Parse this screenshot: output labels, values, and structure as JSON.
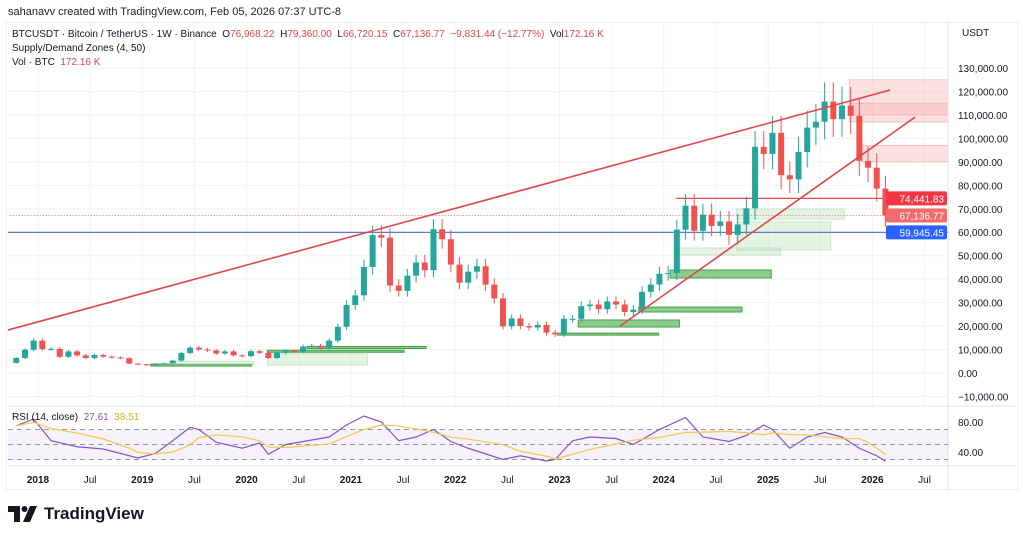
{
  "credit": "sahanavv created with TradingView.com, Feb 05, 2026 07:37 UTC-8",
  "legend": {
    "symbol": "BTCUSDT · Bitcoin / TetherUS · 1W · Binance",
    "o_label": "O",
    "o": "76,968.22",
    "h_label": "H",
    "h": "79,360.00",
    "l_label": "L",
    "l": "66,720.15",
    "c_label": "C",
    "c": "67,136.77",
    "change": "−9,831.44 (−12.77%)",
    "vol_label": "Vol",
    "vol": "172.16 K",
    "indicator": "Supply/Demand Zones (4, 50)",
    "vol_title": "Vol · BTC",
    "vol_value": "172.16 K",
    "rsi_title": "RSI (14, close)",
    "rsi_value": "27.61",
    "rsi_ma_value": "38.51"
  },
  "axis_currency": "USDT",
  "logo_text": "TradingView",
  "colors": {
    "up": "#26a69a",
    "down": "#ef5350",
    "trend": "#e0474c",
    "support": "#5b7fc7",
    "supply": "#f7a8ab",
    "demand": "#4caf50",
    "rsi": "#7e57c2",
    "rsi_ma": "#f0c94a",
    "price_tag": "#f23645",
    "blue_tag": "#2962ff"
  },
  "chart_data": {
    "type": "candlestick",
    "interval_shown": "1W (approximated monthly)",
    "start_month": "2017-10",
    "first_open": 4300,
    "closes": [
      6400,
      9900,
      13800,
      10200,
      10300,
      6900,
      9200,
      7500,
      6400,
      7700,
      7000,
      6600,
      6300,
      4000,
      3700,
      3400,
      3800,
      4100,
      5300,
      8500,
      10800,
      10000,
      9600,
      8300,
      9200,
      7500,
      7200,
      9300,
      8600,
      6400,
      8600,
      9400,
      9100,
      11300,
      11600,
      10800,
      13800,
      19700,
      29000,
      33100,
      45200,
      58800,
      57700,
      37300,
      35000,
      41500,
      47100,
      43800,
      61300,
      57000,
      46200,
      38500,
      43200,
      45500,
      37700,
      31800,
      19900,
      23300,
      20000,
      19400,
      20500,
      17200,
      16500,
      23100,
      23100,
      28500,
      29200,
      27200,
      30500,
      29200,
      26000,
      27000,
      34600,
      37700,
      42300,
      42600,
      61100,
      71300,
      60600,
      67500,
      62700,
      64600,
      58900,
      63300,
      70200,
      96400,
      93400,
      102400,
      84300,
      82500,
      94200,
      104600,
      107100,
      115700,
      108200,
      114000,
      109600,
      90400,
      87500,
      78600,
      67136.77
    ],
    "y_ticks": [
      130000,
      120000,
      110000,
      100000,
      90000,
      80000,
      70000,
      60000,
      50000,
      40000,
      30000,
      20000,
      10000,
      0,
      -10000
    ],
    "y_tick_labels": [
      "130,000.00",
      "120,000.00",
      "110,000.00",
      "100,000.00",
      "90,000.00",
      "80,000.00",
      "70,000.00",
      "60,000.00",
      "50,000.00",
      "40,000.00",
      "30,000.00",
      "20,000.00",
      "10,000.00",
      "0.00",
      "−10,000.00"
    ],
    "x_ticks": [
      {
        "d": 2018,
        "label": "2018",
        "bold": true
      },
      {
        "d": 2018.5,
        "label": "Jul"
      },
      {
        "d": 2019,
        "label": "2019",
        "bold": true
      },
      {
        "d": 2019.5,
        "label": "Jul"
      },
      {
        "d": 2020,
        "label": "2020",
        "bold": true
      },
      {
        "d": 2020.5,
        "label": "Jul"
      },
      {
        "d": 2021,
        "label": "2021",
        "bold": true
      },
      {
        "d": 2021.5,
        "label": "Jul"
      },
      {
        "d": 2022,
        "label": "2022",
        "bold": true
      },
      {
        "d": 2022.5,
        "label": "Jul"
      },
      {
        "d": 2023,
        "label": "2023",
        "bold": true
      },
      {
        "d": 2023.5,
        "label": "Jul"
      },
      {
        "d": 2024,
        "label": "2024",
        "bold": true
      },
      {
        "d": 2024.5,
        "label": "Jul"
      },
      {
        "d": 2025,
        "label": "2025",
        "bold": true
      },
      {
        "d": 2025.5,
        "label": "Jul"
      },
      {
        "d": 2026,
        "label": "2026",
        "bold": true
      },
      {
        "d": 2026.5,
        "label": "Jul"
      }
    ],
    "price_tags": [
      {
        "value": 74441.83,
        "label": "74,441.83",
        "color": "#f23645"
      },
      {
        "value": 67136.77,
        "label": "67,136.77",
        "color": "#f26b6b"
      },
      {
        "value": 59945.45,
        "label": "59,945.45",
        "color": "#2962ff"
      }
    ],
    "horizontal_lines": [
      {
        "value": 74441.83,
        "from": 2024.12,
        "color": "#e0474c",
        "style": "solid"
      },
      {
        "value": 59945.45,
        "from": 2017.7,
        "color": "#5b7fc7",
        "style": "solid"
      },
      {
        "value": 67136.77,
        "from": 2017.7,
        "color": "#f26b6b",
        "style": "dotted"
      }
    ],
    "trendlines": [
      {
        "from": [
          2017.71,
          18300
        ],
        "to": [
          2026.17,
          120600
        ]
      },
      {
        "from": [
          2023.58,
          20000
        ],
        "to": [
          2026.41,
          109100
        ]
      }
    ],
    "supply_zones": [
      {
        "from": 2025.78,
        "top": 125000,
        "bottom": 107000
      },
      {
        "from": 2025.78,
        "top": 115000,
        "bottom": 110000
      },
      {
        "from": 2025.9,
        "top": 97000,
        "bottom": 90000
      }
    ],
    "demand_zones": [
      {
        "from": 2024.7,
        "to": 2025.73,
        "top": 69900,
        "bottom": 65600,
        "strong": false
      },
      {
        "from": 2024.7,
        "to": 2025.6,
        "top": 64400,
        "bottom": 52400,
        "strong": false
      },
      {
        "from": 2024.14,
        "to": 2025.12,
        "top": 53300,
        "bottom": 50300,
        "strong": false
      },
      {
        "from": 2024.06,
        "to": 2025.03,
        "top": 43900,
        "bottom": 40500,
        "strong": true
      },
      {
        "from": 2023.76,
        "to": 2024.75,
        "top": 28100,
        "bottom": 26000,
        "strong": true
      },
      {
        "from": 2023.18,
        "to": 2024.15,
        "top": 22600,
        "bottom": 19600,
        "strong": true
      },
      {
        "from": 2022.98,
        "to": 2023.95,
        "top": 17000,
        "bottom": 16200,
        "strong": true
      },
      {
        "from": 2019.08,
        "to": 2020.05,
        "top": 3800,
        "bottom": 3200,
        "strong": true
      },
      {
        "from": 2019.27,
        "to": 2020.07,
        "top": 5000,
        "bottom": 4000,
        "strong": false
      },
      {
        "from": 2020.2,
        "to": 2021.16,
        "top": 8100,
        "bottom": 3400,
        "strong": false
      },
      {
        "from": 2020.58,
        "to": 2021.72,
        "top": 11300,
        "bottom": 10700,
        "strong": true
      },
      {
        "from": 2020.2,
        "to": 2021.51,
        "top": 9700,
        "bottom": 9100,
        "strong": true
      }
    ],
    "rsi": {
      "ticks": [
        80,
        40
      ],
      "levels": [
        70,
        50,
        30
      ],
      "points": [
        [
          "2017-10",
          75
        ],
        [
          "2017-12",
          84
        ],
        [
          "2018-02",
          55
        ],
        [
          "2018-05",
          47
        ],
        [
          "2018-08",
          44
        ],
        [
          "2018-11",
          35
        ],
        [
          "2018-12",
          32
        ],
        [
          "2019-02",
          38
        ],
        [
          "2019-04",
          55
        ],
        [
          "2019-06",
          73
        ],
        [
          "2019-07",
          70
        ],
        [
          "2019-09",
          53
        ],
        [
          "2019-12",
          45
        ],
        [
          "2020-02",
          52
        ],
        [
          "2020-03",
          37
        ],
        [
          "2020-05",
          50
        ],
        [
          "2020-08",
          56
        ],
        [
          "2020-10",
          60
        ],
        [
          "2020-12",
          76
        ],
        [
          "2021-02",
          88
        ],
        [
          "2021-04",
          80
        ],
        [
          "2021-06",
          55
        ],
        [
          "2021-08",
          60
        ],
        [
          "2021-10",
          70
        ],
        [
          "2021-12",
          54
        ],
        [
          "2022-02",
          45
        ],
        [
          "2022-06",
          30
        ],
        [
          "2022-08",
          35
        ],
        [
          "2022-11",
          28
        ],
        [
          "2022-12",
          30
        ],
        [
          "2023-02",
          55
        ],
        [
          "2023-04",
          60
        ],
        [
          "2023-07",
          58
        ],
        [
          "2023-09",
          50
        ],
        [
          "2023-12",
          70
        ],
        [
          "2024-03",
          86
        ],
        [
          "2024-05",
          60
        ],
        [
          "2024-08",
          54
        ],
        [
          "2024-10",
          62
        ],
        [
          "2024-12",
          76
        ],
        [
          "2025-01",
          70
        ],
        [
          "2025-03",
          45
        ],
        [
          "2025-05",
          60
        ],
        [
          "2025-07",
          66
        ],
        [
          "2025-09",
          60
        ],
        [
          "2025-11",
          45
        ],
        [
          "2025-12",
          40
        ],
        [
          "2026-01",
          35
        ],
        [
          "2026-02",
          27.61
        ]
      ]
    }
  }
}
